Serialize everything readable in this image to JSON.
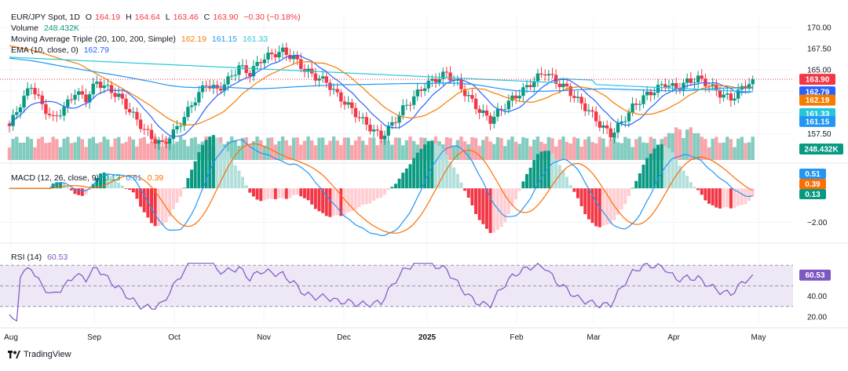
{
  "header": {
    "symbol": "EUR/JPY Spot, 1D",
    "o_label": "O",
    "o": "164.19",
    "h_label": "H",
    "h": "164.64",
    "l_label": "L",
    "l": "163.46",
    "c_label": "C",
    "c": "163.90",
    "change": "−0.30 (−0.18%)"
  },
  "volume_legend": {
    "name": "Volume",
    "value": "248.432K"
  },
  "ma_legend": {
    "name": "Moving Average Triple (20, 100, 200, Simple)",
    "v1": "162.19",
    "v2": "161.15",
    "v3": "161.33"
  },
  "ema_legend": {
    "name": "EMA (10, close, 0)",
    "v1": "162.79"
  },
  "macd_legend": {
    "name": "MACD (12, 26, close, 9)",
    "v1": "0.13",
    "v2": "0.51",
    "v3": "0.39"
  },
  "rsi_legend": {
    "name": "RSI (14)",
    "v1": "60.53"
  },
  "footer": {
    "brand": "TradingView"
  },
  "colors": {
    "up": "#089981",
    "down": "#f23645",
    "ema": "#2962ff",
    "ma20": "#f57c00",
    "ma100": "#2196f3",
    "ma200": "#26c6da",
    "macd_line": "#2196f3",
    "signal_line": "#ff6d00",
    "rsi": "#7e57c2",
    "rsi_band": "#ede7f6",
    "grid": "#f0f3fa"
  },
  "chart_data": [
    {
      "type": "candlestick",
      "x_labels": [
        "Aug",
        "Sep",
        "Oct",
        "Nov",
        "Dec",
        "2025",
        "Feb",
        "Mar",
        "Apr",
        "May"
      ],
      "y_ticks": [
        157.5,
        160.0,
        162.5,
        165.0,
        167.5,
        170.0
      ],
      "ylim": [
        154.4,
        171.2
      ],
      "close_path": [
        158.4,
        161.0,
        163.2,
        160.8,
        159.2,
        160.5,
        162.4,
        161.6,
        163.6,
        162.8,
        161.9,
        160.2,
        158.5,
        157.0,
        156.2,
        157.6,
        159.5,
        161.6,
        163.4,
        162.6,
        163.8,
        165.4,
        164.6,
        166.2,
        166.8,
        167.2,
        166.4,
        165.0,
        164.2,
        163.6,
        162.0,
        160.8,
        159.4,
        158.2,
        157.1,
        158.6,
        160.4,
        161.8,
        163.2,
        163.9,
        164.6,
        163.4,
        161.8,
        160.2,
        159.1,
        160.4,
        161.6,
        162.6,
        163.8,
        164.8,
        163.6,
        162.8,
        161.4,
        160.2,
        158.6,
        157.4,
        158.8,
        160.6,
        161.8,
        162.6,
        163.4,
        162.8,
        163.6,
        164.0,
        163.2,
        162.2,
        161.6,
        162.8,
        163.9
      ],
      "price_badges": [
        {
          "label": "163.90",
          "value": 163.9,
          "color": "#f23645"
        },
        {
          "label": "162.79",
          "value": 162.79,
          "color": "#2962ff"
        },
        {
          "label": "162.19",
          "value": 162.19,
          "color": "#f57c00"
        },
        {
          "label": "161.33",
          "value": 161.33,
          "color": "#26c6da"
        },
        {
          "label": "161.15",
          "value": 161.15,
          "color": "#2196f3"
        }
      ],
      "volume_badge": "248.432K"
    },
    {
      "type": "bar",
      "name": "MACD",
      "y_ticks": [
        -2.0
      ],
      "ylim": [
        -3.0,
        1.3
      ],
      "badges": [
        {
          "label": "0.51",
          "value": 0.51,
          "color": "#2196f3"
        },
        {
          "label": "0.39",
          "value": 0.39,
          "color": "#ff6d00"
        },
        {
          "label": "0.13",
          "value": 0.13,
          "color": "#089981"
        }
      ]
    },
    {
      "type": "line",
      "name": "RSI",
      "y_ticks": [
        20.0,
        40.0
      ],
      "ylim": [
        13,
        87
      ],
      "band": [
        30,
        70
      ],
      "midline": 50,
      "badges": [
        {
          "label": "60.53",
          "value": 60.53,
          "color": "#7e57c2"
        }
      ]
    }
  ]
}
